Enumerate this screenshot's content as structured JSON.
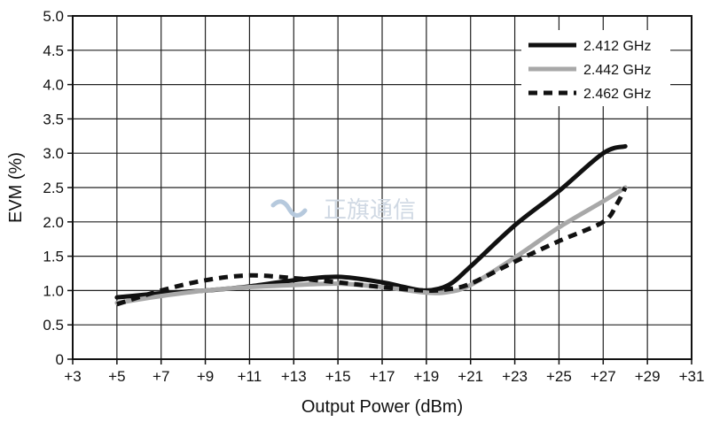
{
  "chart_data": {
    "type": "line",
    "title": "",
    "xlabel": "Output Power (dBm)",
    "ylabel": "EVM (%)",
    "xlim": [
      3,
      31
    ],
    "ylim": [
      0,
      5
    ],
    "x_ticks": [
      "+3",
      "+5",
      "+7",
      "+9",
      "+11",
      "+13",
      "+15",
      "+17",
      "+19",
      "+21",
      "+23",
      "+25",
      "+27",
      "+29",
      "+31"
    ],
    "y_ticks": [
      "0",
      "0.5",
      "1.0",
      "1.5",
      "2.0",
      "2.5",
      "3.0",
      "3.5",
      "4.0",
      "4.5",
      "5.0"
    ],
    "grid": true,
    "legend_position": "top-right",
    "series": [
      {
        "name": "2.412 GHz",
        "color": "#111111",
        "style": "solid",
        "x": [
          5,
          7,
          9,
          11,
          13,
          15,
          17,
          18,
          19,
          20,
          21,
          23,
          25,
          27,
          28
        ],
        "y": [
          0.9,
          0.96,
          1.0,
          1.06,
          1.15,
          1.2,
          1.12,
          1.05,
          1.0,
          1.08,
          1.35,
          1.95,
          2.45,
          3.0,
          3.1
        ]
      },
      {
        "name": "2.442 GHz",
        "color": "#a8a8a8",
        "style": "solid",
        "x": [
          5,
          7,
          9,
          11,
          13,
          15,
          17,
          19,
          20,
          21,
          23,
          25,
          27,
          28
        ],
        "y": [
          0.82,
          0.92,
          1.0,
          1.05,
          1.08,
          1.1,
          1.05,
          0.97,
          0.98,
          1.08,
          1.48,
          1.92,
          2.3,
          2.5
        ]
      },
      {
        "name": "2.462 GHz",
        "color": "#111111",
        "style": "dashed",
        "x": [
          5,
          7,
          9,
          11,
          13,
          15,
          17,
          19,
          20,
          21,
          23,
          25,
          27,
          27.6,
          28
        ],
        "y": [
          0.8,
          1.0,
          1.15,
          1.22,
          1.18,
          1.12,
          1.05,
          1.0,
          1.02,
          1.1,
          1.42,
          1.72,
          2.0,
          2.25,
          2.5
        ]
      }
    ]
  }
}
